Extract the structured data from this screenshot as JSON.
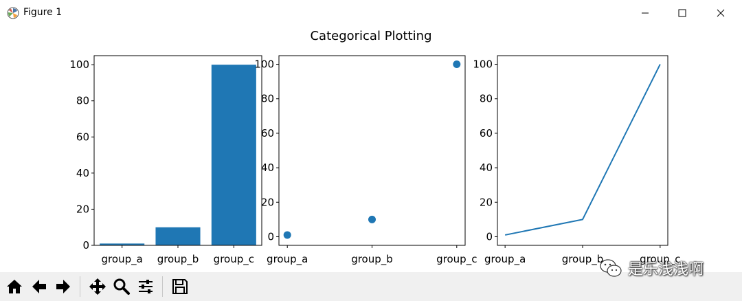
{
  "window": {
    "title": "Figure 1"
  },
  "figure_title": "Categorical Plotting",
  "chart_data": [
    {
      "type": "bar",
      "categories": [
        "group_a",
        "group_b",
        "group_c"
      ],
      "values": [
        1,
        10,
        100
      ],
      "yticks": [
        0,
        20,
        40,
        60,
        80,
        100
      ],
      "ylim": [
        0,
        105
      ],
      "color": "#1f77b4"
    },
    {
      "type": "scatter",
      "categories": [
        "group_a",
        "group_b",
        "group_c"
      ],
      "values": [
        1,
        10,
        100
      ],
      "yticks": [
        0,
        20,
        40,
        60,
        80,
        100
      ],
      "ylim": [
        -5,
        105
      ],
      "color": "#1f77b4"
    },
    {
      "type": "line",
      "categories": [
        "group_a",
        "group_b",
        "group_c"
      ],
      "values": [
        1,
        10,
        100
      ],
      "yticks": [
        0,
        20,
        40,
        60,
        80,
        100
      ],
      "ylim": [
        -5,
        105
      ],
      "color": "#1f77b4"
    }
  ],
  "toolbar": {
    "buttons": [
      "home-icon",
      "back-arrow-icon",
      "forward-arrow-icon",
      "pan-icon",
      "zoom-icon",
      "configure-subplots-icon",
      "save-icon"
    ]
  },
  "watermark": {
    "text": "是乐浅浅啊"
  }
}
